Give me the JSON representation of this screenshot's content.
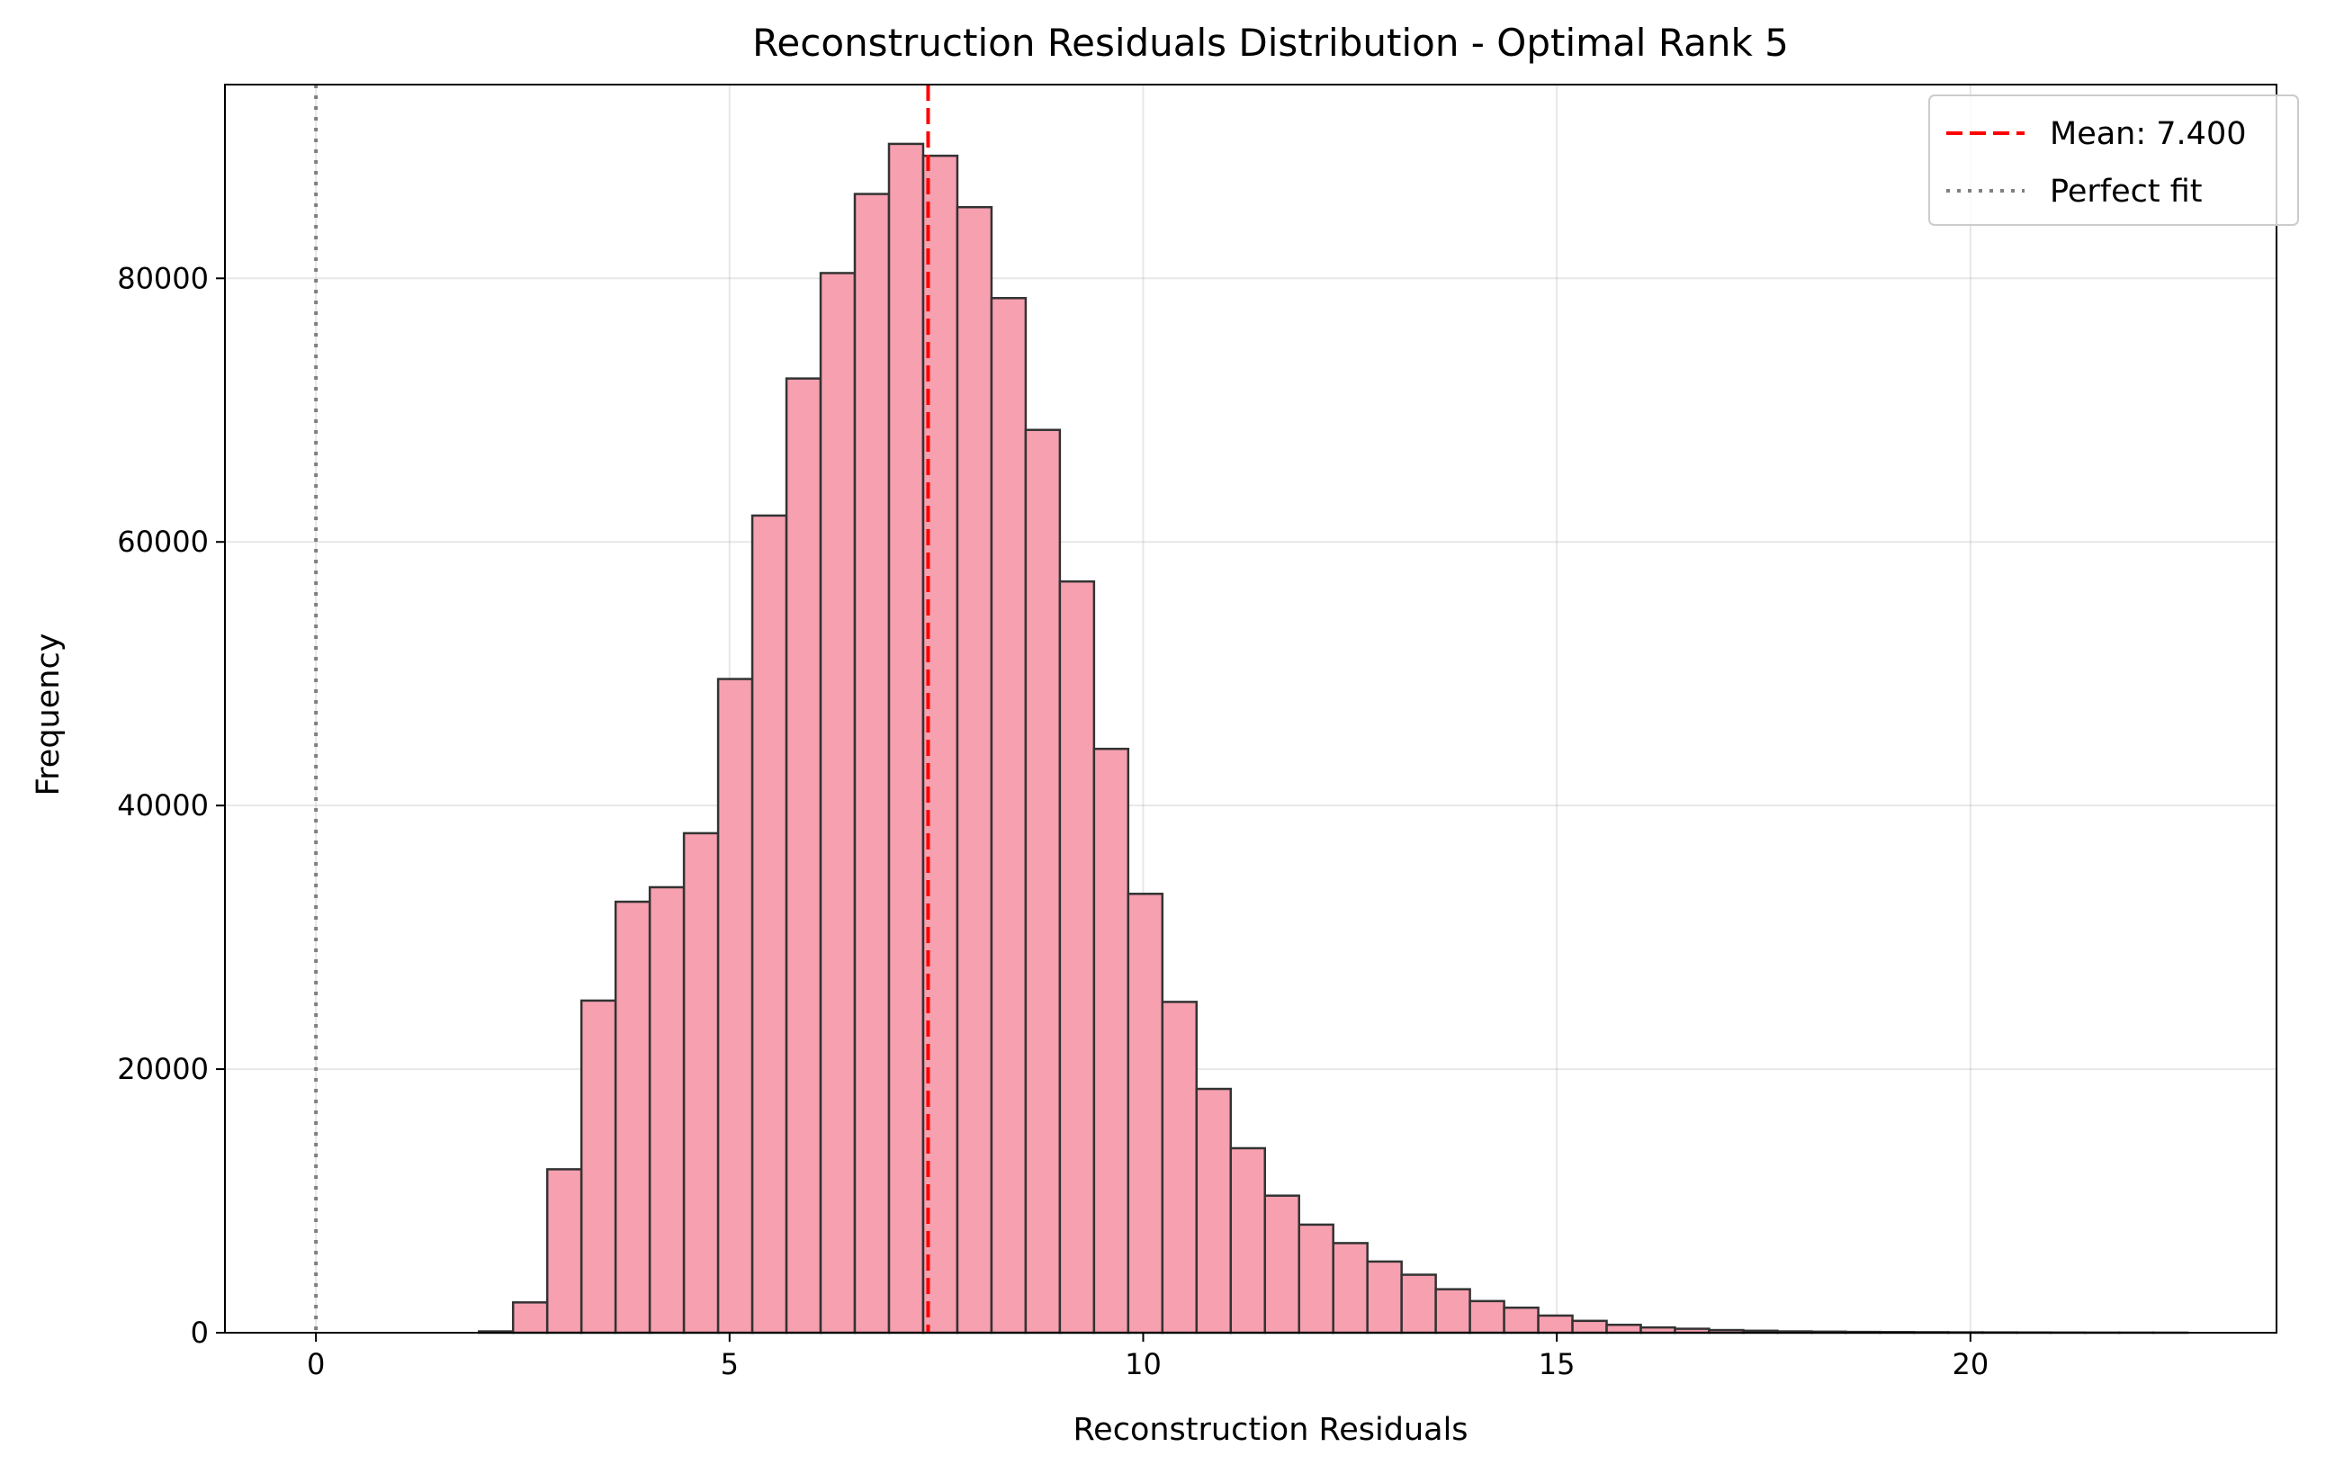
{
  "chart_data": {
    "type": "bar",
    "title": "Reconstruction Residuals Distribution - Optimal Rank 5",
    "xlabel": "Reconstruction Residuals",
    "ylabel": "Frequency",
    "xlim": [
      -1.1,
      23.7
    ],
    "ylim": [
      0,
      94700
    ],
    "xticks": [
      0,
      5,
      10,
      15,
      20
    ],
    "yticks": [
      0,
      20000,
      40000,
      60000,
      80000
    ],
    "grid": true,
    "legend_position": "top-right",
    "bar_color": "#f7a0b0",
    "edge_color": "#333333",
    "bins": {
      "start": 1.97,
      "width": 0.4131,
      "counts": [
        100,
        2300,
        12400,
        25200,
        32700,
        33800,
        37900,
        49600,
        62000,
        72400,
        80400,
        86400,
        90200,
        89300,
        85400,
        78500,
        68500,
        57000,
        44300,
        33300,
        25100,
        18500,
        14000,
        10400,
        8200,
        6800,
        5400,
        4400,
        3300,
        2400,
        1900,
        1300,
        900,
        600,
        400,
        300,
        200,
        150,
        100,
        80,
        60,
        50,
        40,
        30,
        25,
        20,
        15,
        10,
        8,
        5
      ]
    },
    "mean_line": {
      "value": 7.4,
      "label": "Mean: 7.400",
      "color": "#ff0000",
      "style": "dashed"
    },
    "reference_line": {
      "value": 0,
      "label": "Perfect fit",
      "color": "#808080",
      "style": "dotted"
    }
  }
}
